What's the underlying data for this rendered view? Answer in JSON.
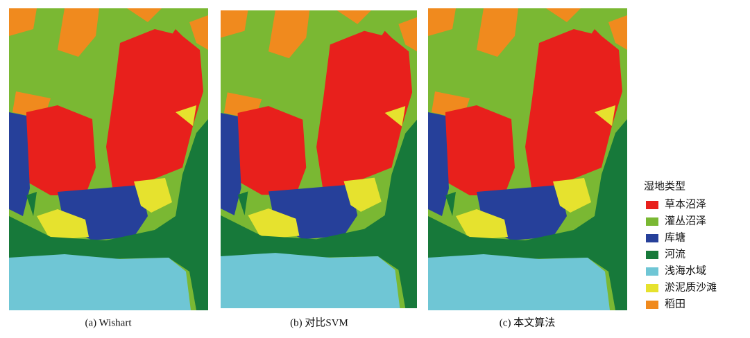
{
  "panels": [
    {
      "caption": "(a) Wishart"
    },
    {
      "caption": "(b) 对比SVM"
    },
    {
      "caption": "(c) 本文算法"
    }
  ],
  "legend": {
    "title": "湿地类型",
    "items": [
      {
        "label": "草本沼泽",
        "color": "#e8201c"
      },
      {
        "label": "灌丛沼泽",
        "color": "#7ab833"
      },
      {
        "label": "库塘",
        "color": "#26409a"
      },
      {
        "label": "河流",
        "color": "#17793a"
      },
      {
        "label": "浅海水域",
        "color": "#6fc6d5"
      },
      {
        "label": "淤泥质沙滩",
        "color": "#e6e22e"
      },
      {
        "label": "稻田",
        "color": "#f08a1e"
      }
    ]
  }
}
